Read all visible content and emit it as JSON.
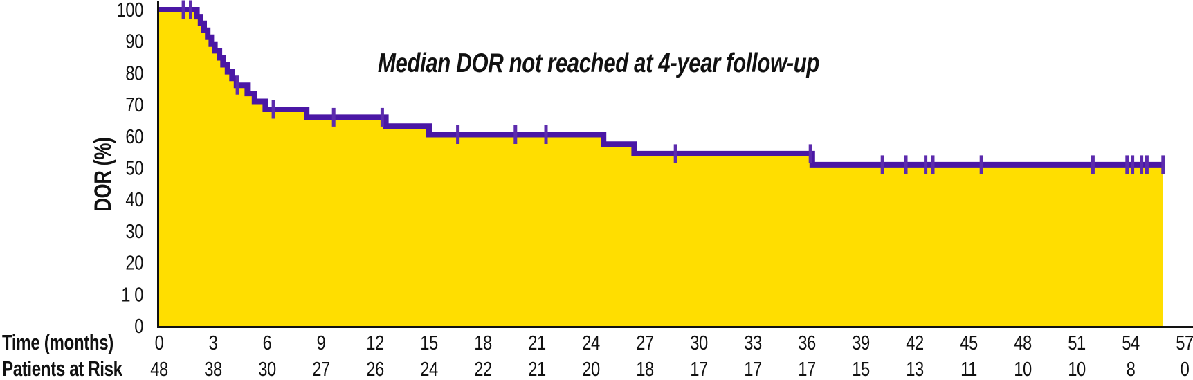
{
  "labels": {
    "time_row": "Time (months)",
    "risk_row": "Patients at Risk"
  },
  "colors": {
    "fill_yellow": "#FFDE00",
    "curve_purple": "#4A17A5",
    "censor_purple": "#5C2BAD",
    "annotation_purple": "#4B2399",
    "axis_black": "#121212"
  },
  "chart_data": {
    "type": "line",
    "subtype": "kaplan-meier-step-area",
    "title": "Median DOR not reached at 4-year follow-up",
    "xlabel": "Time (months)",
    "ylabel": "DOR (%)",
    "xlim": [
      0,
      57
    ],
    "ylim": [
      0,
      100
    ],
    "grid": false,
    "legend": "none",
    "x_ticks": [
      0,
      3,
      6,
      9,
      12,
      15,
      18,
      21,
      24,
      27,
      30,
      33,
      36,
      39,
      42,
      45,
      48,
      51,
      54,
      57
    ],
    "y_ticks": [
      100,
      90,
      80,
      70,
      60,
      50,
      40,
      30,
      20,
      10,
      0
    ],
    "y_tick_labels": [
      "100",
      "90",
      "80",
      "70",
      "60",
      "50",
      "40",
      "30",
      "20",
      "1 0",
      "0"
    ],
    "steps": [
      {
        "t": 0,
        "pct": 100
      },
      {
        "t": 2.1,
        "pct": 97.8
      },
      {
        "t": 2.3,
        "pct": 95.7
      },
      {
        "t": 2.5,
        "pct": 93.5
      },
      {
        "t": 2.7,
        "pct": 91.3
      },
      {
        "t": 2.9,
        "pct": 89.1
      },
      {
        "t": 3.1,
        "pct": 87.0
      },
      {
        "t": 3.35,
        "pct": 84.8
      },
      {
        "t": 3.55,
        "pct": 82.6
      },
      {
        "t": 3.8,
        "pct": 80.4
      },
      {
        "t": 4.05,
        "pct": 78.3
      },
      {
        "t": 4.3,
        "pct": 76.1
      },
      {
        "t": 4.9,
        "pct": 73.5
      },
      {
        "t": 5.3,
        "pct": 71.0
      },
      {
        "t": 5.9,
        "pct": 68.5
      },
      {
        "t": 8.2,
        "pct": 66.0
      },
      {
        "t": 12.6,
        "pct": 63.2
      },
      {
        "t": 15.0,
        "pct": 60.5
      },
      {
        "t": 24.7,
        "pct": 57.5
      },
      {
        "t": 26.4,
        "pct": 54.5
      },
      {
        "t": 36.3,
        "pct": 51.0
      }
    ],
    "end_time": 55.8,
    "censor_marks": [
      {
        "t": 1.35,
        "pct": 100
      },
      {
        "t": 1.75,
        "pct": 100
      },
      {
        "t": 4.35,
        "pct": 76.1
      },
      {
        "t": 6.35,
        "pct": 68.5
      },
      {
        "t": 9.7,
        "pct": 66.0
      },
      {
        "t": 12.4,
        "pct": 66.0
      },
      {
        "t": 16.6,
        "pct": 60.5
      },
      {
        "t": 19.8,
        "pct": 60.5
      },
      {
        "t": 21.5,
        "pct": 60.5
      },
      {
        "t": 28.7,
        "pct": 54.5
      },
      {
        "t": 36.2,
        "pct": 54.5
      },
      {
        "t": 40.2,
        "pct": 51.0
      },
      {
        "t": 41.5,
        "pct": 51.0
      },
      {
        "t": 42.6,
        "pct": 51.0
      },
      {
        "t": 43.0,
        "pct": 51.0
      },
      {
        "t": 45.7,
        "pct": 51.0
      },
      {
        "t": 51.9,
        "pct": 51.0
      },
      {
        "t": 53.8,
        "pct": 51.0
      },
      {
        "t": 54.1,
        "pct": 51.0
      },
      {
        "t": 54.6,
        "pct": 51.0
      },
      {
        "t": 54.9,
        "pct": 51.0
      },
      {
        "t": 55.8,
        "pct": 51.0
      }
    ],
    "patients_at_risk": [
      48,
      38,
      30,
      27,
      26,
      24,
      22,
      21,
      20,
      18,
      17,
      17,
      17,
      15,
      13,
      11,
      10,
      10,
      8,
      0
    ]
  }
}
